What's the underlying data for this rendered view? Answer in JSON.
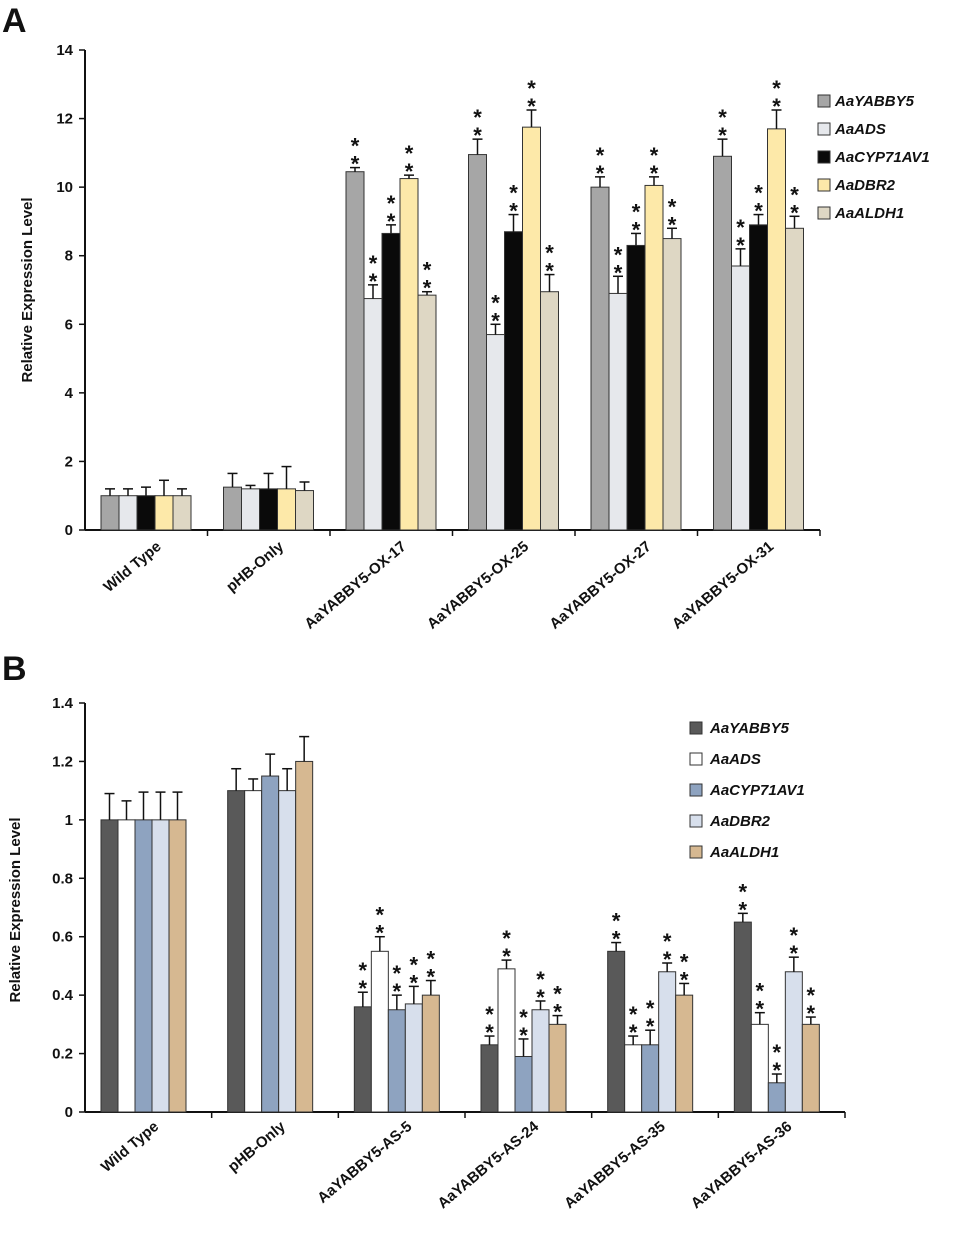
{
  "figure": {
    "panels": [
      "A",
      "B"
    ]
  },
  "chart_data": [
    {
      "panel": "A",
      "type": "bar",
      "title": "",
      "xlabel": "",
      "ylabel": "Relative Expression Level",
      "ylim": [
        0,
        14
      ],
      "yticks": [
        0,
        2,
        4,
        6,
        8,
        10,
        12,
        14
      ],
      "grid": false,
      "legend_position": "top-right",
      "categories": [
        "Wild Type",
        "pHB-Only",
        "AaYABBY5-OX-17",
        "AaYABBY5-OX-25",
        "AaYABBY5-OX-27",
        "AaYABBY5-OX-31"
      ],
      "series": [
        {
          "name": "AaYABBY5",
          "color": "#a6a6a6",
          "values": [
            1.0,
            1.25,
            10.45,
            10.95,
            10.0,
            10.9
          ],
          "errors": [
            0.2,
            0.4,
            0.12,
            0.45,
            0.3,
            0.5
          ],
          "significance": [
            "",
            "",
            "**",
            "**",
            "**",
            "**"
          ]
        },
        {
          "name": "AaADS",
          "color": "#e6e8ec",
          "values": [
            1.0,
            1.2,
            6.75,
            5.7,
            6.9,
            7.7
          ],
          "errors": [
            0.2,
            0.1,
            0.4,
            0.3,
            0.5,
            0.5
          ],
          "significance": [
            "",
            "",
            "**",
            "**",
            "**",
            "**"
          ]
        },
        {
          "name": "AaCYP71AV1",
          "color": "#0a0a0a",
          "values": [
            1.0,
            1.2,
            8.65,
            8.7,
            8.3,
            8.9
          ],
          "errors": [
            0.25,
            0.45,
            0.25,
            0.5,
            0.35,
            0.3
          ],
          "significance": [
            "",
            "",
            "**",
            "**",
            "**",
            "**"
          ]
        },
        {
          "name": "AaDBR2",
          "color": "#fde9a9",
          "values": [
            1.0,
            1.2,
            10.25,
            11.75,
            10.05,
            11.7
          ],
          "errors": [
            0.45,
            0.65,
            0.1,
            0.5,
            0.25,
            0.55
          ],
          "significance": [
            "",
            "",
            "**",
            "**",
            "**",
            "**"
          ]
        },
        {
          "name": "AaALDH1",
          "color": "#ded7c4",
          "values": [
            1.0,
            1.15,
            6.85,
            6.95,
            8.5,
            8.8
          ],
          "errors": [
            0.2,
            0.25,
            0.1,
            0.5,
            0.3,
            0.35
          ],
          "significance": [
            "",
            "",
            "**",
            "**",
            "**",
            "**"
          ]
        }
      ]
    },
    {
      "panel": "B",
      "type": "bar",
      "title": "",
      "xlabel": "",
      "ylabel": "Relative Expression Level",
      "ylim": [
        0,
        1.4
      ],
      "yticks": [
        0,
        0.2,
        0.4,
        0.6,
        0.8,
        1,
        1.2,
        1.4
      ],
      "grid": false,
      "legend_position": "top-right",
      "categories": [
        "Wild Type",
        "pHB-Only",
        "AaYABBY5-AS-5",
        "AaYABBY5-AS-24",
        "AaYABBY5-AS-35",
        "AaYABBY5-AS-36"
      ],
      "series": [
        {
          "name": "AaYABBY5",
          "color": "#595959",
          "values": [
            1.0,
            1.1,
            0.36,
            0.23,
            0.55,
            0.65
          ],
          "errors": [
            0.09,
            0.075,
            0.05,
            0.03,
            0.03,
            0.03
          ],
          "significance": [
            "",
            "",
            "**",
            "**",
            "**",
            "**"
          ]
        },
        {
          "name": "AaADS",
          "color": "#ffffff",
          "values": [
            1.0,
            1.1,
            0.55,
            0.49,
            0.23,
            0.3
          ],
          "errors": [
            0.065,
            0.04,
            0.05,
            0.03,
            0.03,
            0.04
          ],
          "significance": [
            "",
            "",
            "**",
            "**",
            "**",
            "**"
          ]
        },
        {
          "name": "AaCYP71AV1",
          "color": "#8ea3c0",
          "values": [
            1.0,
            1.15,
            0.35,
            0.19,
            0.23,
            0.1
          ],
          "errors": [
            0.095,
            0.075,
            0.05,
            0.06,
            0.05,
            0.03
          ],
          "significance": [
            "",
            "",
            "**",
            "**",
            "**",
            "**"
          ]
        },
        {
          "name": "AaDBR2",
          "color": "#d7dfec",
          "values": [
            1.0,
            1.1,
            0.37,
            0.35,
            0.48,
            0.48
          ],
          "errors": [
            0.095,
            0.075,
            0.06,
            0.03,
            0.03,
            0.05
          ],
          "significance": [
            "",
            "",
            "**",
            "**",
            "**",
            "**"
          ]
        },
        {
          "name": "AaALDH1",
          "color": "#d6b891",
          "values": [
            1.0,
            1.2,
            0.4,
            0.3,
            0.4,
            0.3
          ],
          "errors": [
            0.095,
            0.085,
            0.05,
            0.03,
            0.04,
            0.025
          ],
          "significance": [
            "",
            "",
            "**",
            "**",
            "**",
            "**"
          ]
        }
      ]
    }
  ]
}
